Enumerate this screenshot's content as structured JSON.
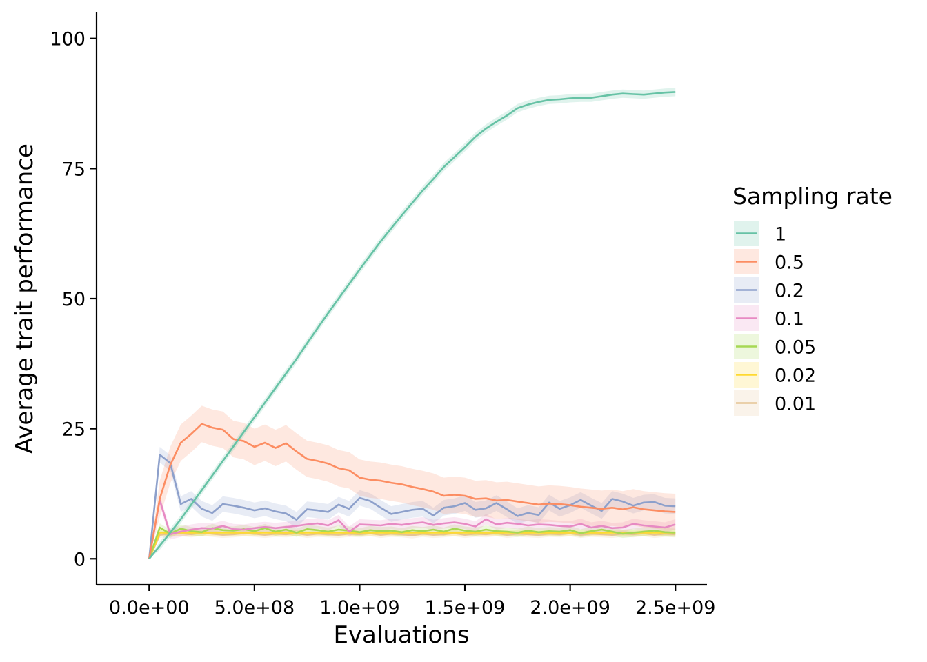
{
  "chart_data": {
    "type": "line",
    "title": "",
    "xlabel": "Evaluations",
    "ylabel": "Average trait performance",
    "xlim": [
      -250000000,
      2650000000
    ],
    "ylim": [
      -5,
      105
    ],
    "xticks": [
      0,
      500000000,
      1000000000,
      1500000000,
      2000000000,
      2500000000
    ],
    "xtick_labels": [
      "0.0e+00",
      "5.0e+08",
      "1.0e+09",
      "1.5e+09",
      "2.0e+09",
      "2.5e+09"
    ],
    "yticks": [
      0,
      25,
      50,
      75,
      100
    ],
    "ytick_labels": [
      "0",
      "25",
      "50",
      "75",
      "100"
    ],
    "grid": false,
    "legend": {
      "title": "Sampling rate",
      "placement": "right"
    },
    "x": [
      0,
      50000000,
      100000000,
      150000000,
      200000000,
      250000000,
      300000000,
      350000000,
      400000000,
      450000000,
      500000000,
      550000000,
      600000000,
      650000000,
      700000000,
      750000000,
      800000000,
      850000000,
      900000000,
      950000000,
      1000000000,
      1050000000,
      1100000000,
      1150000000,
      1200000000,
      1250000000,
      1300000000,
      1350000000,
      1400000000,
      1450000000,
      1500000000,
      1550000000,
      1600000000,
      1650000000,
      1700000000,
      1750000000,
      1800000000,
      1850000000,
      1900000000,
      1950000000,
      2000000000,
      2050000000,
      2100000000,
      2150000000,
      2200000000,
      2250000000,
      2300000000,
      2350000000,
      2400000000,
      2450000000,
      2500000000
    ],
    "series": [
      {
        "name": "1",
        "color": "#66C2A5",
        "band": 0.8,
        "values": [
          0,
          2.5,
          5,
          7.6,
          10.4,
          13.2,
          16,
          18.8,
          21.6,
          24.4,
          27.2,
          30,
          32.8,
          35.6,
          38.4,
          41.4,
          44.3,
          47.2,
          50,
          52.8,
          55.6,
          58.3,
          61,
          63.5,
          66,
          68.4,
          70.8,
          73,
          75.3,
          77.2,
          79.1,
          81.1,
          82.7,
          84,
          85.2,
          86.6,
          87.3,
          87.8,
          88.2,
          88.3,
          88.5,
          88.6,
          88.6,
          88.9,
          89.2,
          89.4,
          89.3,
          89.2,
          89.4,
          89.6,
          89.7
        ]
      },
      {
        "name": "0.5",
        "color": "#FC8D62",
        "band": 3.5,
        "values": [
          0,
          11.5,
          18,
          22.3,
          24,
          25.9,
          25.2,
          24.8,
          23,
          22.6,
          21.5,
          22.3,
          21.3,
          22.2,
          20.6,
          19.2,
          18.8,
          18.3,
          17.4,
          17,
          15.6,
          15.2,
          15,
          14.6,
          14.3,
          13.8,
          13.4,
          12.9,
          12.1,
          12.3,
          12.1,
          11.5,
          11.6,
          11.2,
          11.3,
          11,
          10.7,
          10.4,
          10.6,
          10.5,
          10.3,
          10,
          9.8,
          9.6,
          9.8,
          9.5,
          9.9,
          9.5,
          9.3,
          9.1,
          9.0
        ]
      },
      {
        "name": "0.2",
        "color": "#8DA0CB",
        "band": 1.5,
        "values": [
          0,
          20,
          18.4,
          10.5,
          11.5,
          9.6,
          8.8,
          10.5,
          10.2,
          9.8,
          9.3,
          9.7,
          9.1,
          8.7,
          7.5,
          9.5,
          9.3,
          9.0,
          10.4,
          9.6,
          11.7,
          11.1,
          9.8,
          8.6,
          9.0,
          9.4,
          9.6,
          8.3,
          9.8,
          10.1,
          10.7,
          9.4,
          9.7,
          10.7,
          9.5,
          8.2,
          8.8,
          8.4,
          10.8,
          9.6,
          10.3,
          11.3,
          10.2,
          9.2,
          11.5,
          11.0,
          10.2,
          10.8,
          10.9,
          10.2,
          10.1
        ]
      },
      {
        "name": "0.1",
        "color": "#E78AC3",
        "band": 1.0,
        "values": [
          0,
          11.3,
          4.7,
          5.2,
          5.6,
          5.9,
          5.8,
          6.3,
          5.7,
          5.6,
          5.9,
          6.1,
          5.9,
          6.1,
          6.3,
          6.6,
          6.8,
          6.4,
          7.4,
          5.2,
          6.6,
          6.5,
          6.4,
          6.7,
          6.5,
          6.8,
          7.0,
          6.5,
          6.8,
          7.0,
          6.7,
          6.2,
          7.6,
          6.6,
          6.9,
          6.7,
          6.4,
          6.6,
          6.5,
          6.3,
          6.2,
          6.7,
          6.0,
          6.3,
          5.9,
          6.0,
          6.7,
          6.4,
          6.2,
          6.0,
          6.6
        ]
      },
      {
        "name": "0.05",
        "color": "#A6D854",
        "band": 0.8,
        "values": [
          0,
          6,
          4.8,
          5.8,
          5.3,
          5.1,
          5.9,
          5.5,
          5.4,
          5.7,
          5.3,
          5.9,
          5.2,
          5.6,
          5.0,
          5.7,
          5.5,
          5.2,
          5.6,
          5.4,
          5.1,
          5.5,
          5.3,
          5.4,
          5.1,
          5.5,
          5.3,
          5.6,
          5.2,
          5.8,
          5.4,
          5.2,
          5.6,
          5.3,
          5.2,
          5.0,
          5.4,
          5.1,
          5.3,
          5.2,
          5.5,
          4.9,
          5.3,
          5.6,
          5.2,
          4.8,
          5.0,
          5.2,
          5.4,
          5.1,
          5.0
        ]
      },
      {
        "name": "0.02",
        "color": "#FFD92F",
        "band": 0.6,
        "values": [
          0,
          5,
          5,
          5,
          5,
          5,
          5,
          5,
          5,
          5,
          5,
          5,
          5,
          5,
          5,
          5,
          5,
          5,
          5,
          5,
          5,
          5,
          5,
          5,
          5,
          5,
          5,
          5,
          5,
          5,
          5,
          5,
          5,
          5,
          5,
          5,
          5,
          5,
          5,
          5,
          5,
          5,
          5,
          5,
          5,
          5,
          5,
          5,
          5,
          5,
          5
        ]
      },
      {
        "name": "0.01",
        "color": "#E5C494",
        "band": 0.6,
        "values": [
          0,
          4.6,
          4.8,
          4.9,
          4.7,
          5.0,
          4.8,
          4.6,
          4.7,
          4.9,
          4.8,
          4.6,
          4.8,
          4.7,
          4.9,
          4.6,
          4.8,
          4.7,
          4.6,
          4.8,
          4.7,
          4.9,
          4.6,
          4.8,
          4.7,
          4.5,
          4.8,
          4.6,
          4.7,
          4.9,
          4.6,
          4.8,
          4.7,
          4.9,
          4.6,
          4.8,
          4.7,
          4.6,
          4.8,
          4.7,
          4.9,
          4.6,
          4.8,
          4.7,
          4.6,
          4.8,
          4.7,
          4.9,
          4.6,
          4.8,
          4.7
        ]
      }
    ]
  }
}
